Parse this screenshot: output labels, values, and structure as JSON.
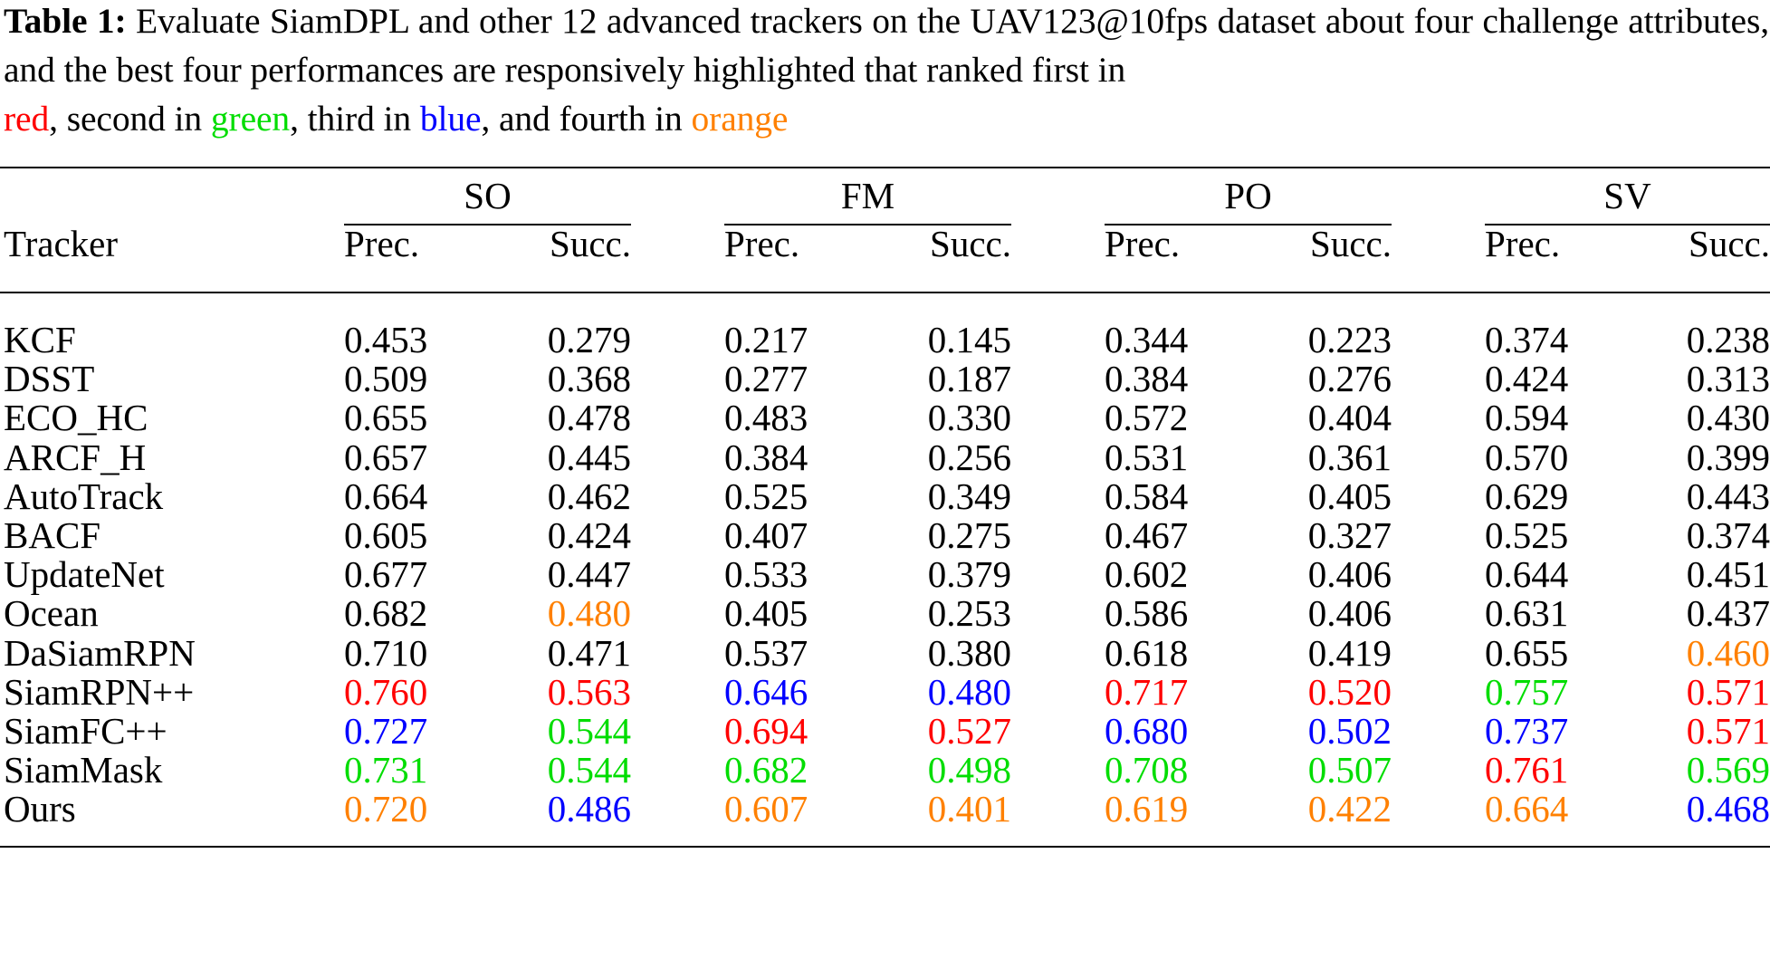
{
  "caption": {
    "label": "Table 1:",
    "line1": "Evaluate SiamDPL and other 12 advanced trackers on the UAV123@10fps dataset about four",
    "line2": "challenge attributes, and the best four performances are responsively highlighted that ranked first in",
    "rank_words": {
      "red": "red",
      "sep1": ", second in ",
      "green": "green",
      "sep2": ", third in ",
      "blue": "blue",
      "sep3": ", and fourth in ",
      "orange": "orange"
    }
  },
  "colors": {
    "first": "#ff0000",
    "second": "#00dd00",
    "third": "#0000ff",
    "fourth": "#ff8000",
    "default": "#000000"
  },
  "table": {
    "tracker_header": "Tracker",
    "groups": [
      "SO",
      "FM",
      "PO",
      "SV"
    ],
    "subheaders": [
      "Prec.",
      "Succ."
    ],
    "rows": [
      {
        "name": "KCF",
        "values": [
          "0.453",
          "0.279",
          "0.217",
          "0.145",
          "0.344",
          "0.223",
          "0.374",
          "0.238"
        ],
        "ranks": [
          0,
          0,
          0,
          0,
          0,
          0,
          0,
          0
        ]
      },
      {
        "name": "DSST",
        "values": [
          "0.509",
          "0.368",
          "0.277",
          "0.187",
          "0.384",
          "0.276",
          "0.424",
          "0.313"
        ],
        "ranks": [
          0,
          0,
          0,
          0,
          0,
          0,
          0,
          0
        ]
      },
      {
        "name": "ECO_HC",
        "values": [
          "0.655",
          "0.478",
          "0.483",
          "0.330",
          "0.572",
          "0.404",
          "0.594",
          "0.430"
        ],
        "ranks": [
          0,
          0,
          0,
          0,
          0,
          0,
          0,
          0
        ]
      },
      {
        "name": "ARCF_H",
        "values": [
          "0.657",
          "0.445",
          "0.384",
          "0.256",
          "0.531",
          "0.361",
          "0.570",
          "0.399"
        ],
        "ranks": [
          0,
          0,
          0,
          0,
          0,
          0,
          0,
          0
        ]
      },
      {
        "name": "AutoTrack",
        "values": [
          "0.664",
          "0.462",
          "0.525",
          "0.349",
          "0.584",
          "0.405",
          "0.629",
          "0.443"
        ],
        "ranks": [
          0,
          0,
          0,
          0,
          0,
          0,
          0,
          0
        ]
      },
      {
        "name": "BACF",
        "values": [
          "0.605",
          "0.424",
          "0.407",
          "0.275",
          "0.467",
          "0.327",
          "0.525",
          "0.374"
        ],
        "ranks": [
          0,
          0,
          0,
          0,
          0,
          0,
          0,
          0
        ]
      },
      {
        "name": "UpdateNet",
        "values": [
          "0.677",
          "0.447",
          "0.533",
          "0.379",
          "0.602",
          "0.406",
          "0.644",
          "0.451"
        ],
        "ranks": [
          0,
          0,
          0,
          0,
          0,
          0,
          0,
          0
        ]
      },
      {
        "name": "Ocean",
        "values": [
          "0.682",
          "0.480",
          "0.405",
          "0.253",
          "0.586",
          "0.406",
          "0.631",
          "0.437"
        ],
        "ranks": [
          0,
          4,
          0,
          0,
          0,
          0,
          0,
          0
        ]
      },
      {
        "name": "DaSiamRPN",
        "values": [
          "0.710",
          "0.471",
          "0.537",
          "0.380",
          "0.618",
          "0.419",
          "0.655",
          "0.460"
        ],
        "ranks": [
          0,
          0,
          0,
          0,
          0,
          0,
          0,
          4
        ]
      },
      {
        "name": "SiamRPN++",
        "values": [
          "0.760",
          "0.563",
          "0.646",
          "0.480",
          "0.717",
          "0.520",
          "0.757",
          "0.571"
        ],
        "ranks": [
          1,
          1,
          3,
          3,
          1,
          1,
          2,
          1
        ]
      },
      {
        "name": "SiamFC++",
        "values": [
          "0.727",
          "0.544",
          "0.694",
          "0.527",
          "0.680",
          "0.502",
          "0.737",
          "0.571"
        ],
        "ranks": [
          3,
          2,
          1,
          1,
          3,
          3,
          3,
          1
        ]
      },
      {
        "name": "SiamMask",
        "values": [
          "0.731",
          "0.544",
          "0.682",
          "0.498",
          "0.708",
          "0.507",
          "0.761",
          "0.569"
        ],
        "ranks": [
          2,
          2,
          2,
          2,
          2,
          2,
          1,
          2
        ]
      },
      {
        "name": "Ours",
        "values": [
          "0.720",
          "0.486",
          "0.607",
          "0.401",
          "0.619",
          "0.422",
          "0.664",
          "0.468"
        ],
        "ranks": [
          4,
          3,
          4,
          4,
          4,
          4,
          4,
          3
        ]
      }
    ]
  }
}
